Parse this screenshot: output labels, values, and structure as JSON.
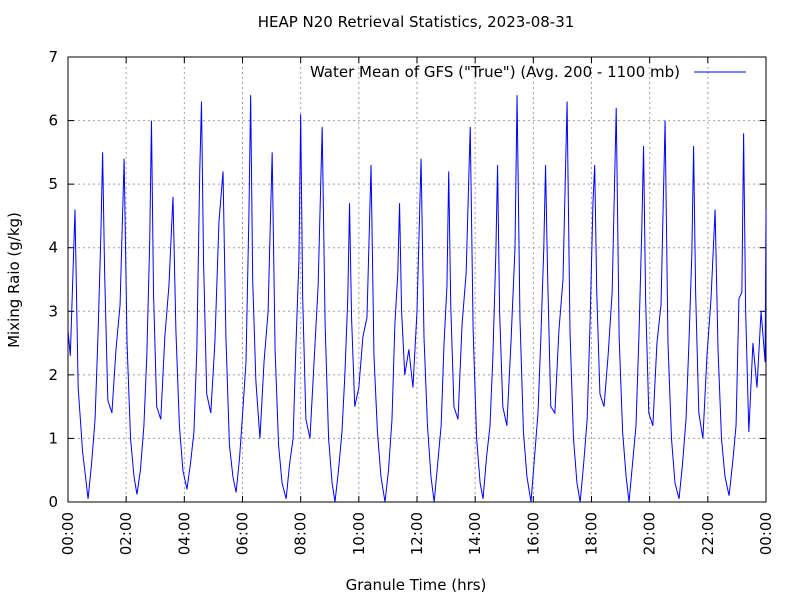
{
  "chart_data": {
    "type": "line",
    "title": "HEAP N20 Retrieval Statistics, 2023-08-31",
    "x_label": "Granule Time (hrs)",
    "y_label": "Mixing Raio (g/kg)",
    "xlim": [
      0,
      24
    ],
    "ylim": [
      0,
      7
    ],
    "xticks": [
      {
        "value": 0,
        "label": "00:00"
      },
      {
        "value": 2,
        "label": "02:00"
      },
      {
        "value": 4,
        "label": "04:00"
      },
      {
        "value": 6,
        "label": "06:00"
      },
      {
        "value": 8,
        "label": "08:00"
      },
      {
        "value": 10,
        "label": "10:00"
      },
      {
        "value": 12,
        "label": "12:00"
      },
      {
        "value": 14,
        "label": "14:00"
      },
      {
        "value": 16,
        "label": "16:00"
      },
      {
        "value": 18,
        "label": "18:00"
      },
      {
        "value": 20,
        "label": "20:00"
      },
      {
        "value": 22,
        "label": "22:00"
      },
      {
        "value": 24,
        "label": "00:00"
      }
    ],
    "yticks": [
      0,
      1,
      2,
      3,
      4,
      5,
      6,
      7
    ],
    "grid": true,
    "legend": "top-right",
    "x": [
      0,
      0.08,
      0.24,
      0.35,
      0.5,
      0.69,
      0.81,
      0.93,
      1.03,
      1.13,
      1.19,
      1.26,
      1.37,
      1.51,
      1.65,
      1.79,
      1.93,
      2.03,
      2.15,
      2.27,
      2.37,
      2.49,
      2.61,
      2.71,
      2.81,
      2.87,
      2.94,
      3.05,
      3.19,
      3.33,
      3.47,
      3.61,
      3.71,
      3.83,
      3.95,
      4.09,
      4.21,
      4.33,
      4.43,
      4.53,
      4.59,
      4.66,
      4.77,
      4.91,
      5.05,
      5.19,
      5.33,
      5.43,
      5.55,
      5.67,
      5.78,
      5.9,
      6.02,
      6.12,
      6.22,
      6.28,
      6.35,
      6.46,
      6.6,
      6.74,
      6.88,
      7.02,
      7.12,
      7.24,
      7.36,
      7.5,
      7.62,
      7.74,
      7.84,
      7.94,
      8.0,
      8.07,
      8.18,
      8.32,
      8.46,
      8.6,
      8.74,
      8.84,
      8.96,
      9.08,
      9.18,
      9.3,
      9.42,
      9.52,
      9.62,
      9.68,
      9.75,
      9.86,
      10.0,
      10.14,
      10.28,
      10.42,
      10.52,
      10.64,
      10.76,
      10.9,
      11.02,
      11.14,
      11.24,
      11.34,
      11.4,
      11.47,
      11.58,
      11.72,
      11.86,
      12.0,
      12.14,
      12.24,
      12.36,
      12.48,
      12.59,
      12.71,
      12.83,
      12.93,
      13.03,
      13.09,
      13.16,
      13.27,
      13.41,
      13.55,
      13.69,
      13.83,
      13.93,
      14.05,
      14.17,
      14.27,
      14.39,
      14.51,
      14.61,
      14.71,
      14.77,
      14.84,
      14.95,
      15.09,
      15.23,
      15.37,
      15.44,
      15.54,
      15.66,
      15.78,
      15.92,
      16.04,
      16.16,
      16.26,
      16.36,
      16.42,
      16.49,
      16.6,
      16.74,
      16.88,
      17.02,
      17.16,
      17.26,
      17.38,
      17.5,
      17.61,
      17.73,
      17.85,
      17.95,
      18.05,
      18.11,
      18.18,
      18.29,
      18.43,
      18.57,
      18.71,
      18.85,
      18.95,
      19.07,
      19.19,
      19.29,
      19.41,
      19.53,
      19.63,
      19.73,
      19.79,
      19.86,
      19.97,
      20.11,
      20.25,
      20.39,
      20.53,
      20.63,
      20.75,
      20.87,
      21.01,
      21.13,
      21.25,
      21.35,
      21.45,
      21.51,
      21.58,
      21.69,
      21.83,
      21.97,
      22.11,
      22.25,
      22.35,
      22.47,
      22.59,
      22.73,
      22.85,
      22.97,
      23.07,
      23.17,
      23.23,
      23.3,
      23.41,
      23.55,
      23.69,
      23.83,
      23.97,
      24.0
    ],
    "series": [
      {
        "name": "Water Mean of GFS (\"True\") (Avg. 200 - 1100 mb)",
        "color": "#0000ff",
        "values": [
          2.7,
          2.3,
          4.6,
          1.8,
          0.8,
          0.05,
          0.6,
          1.3,
          2.6,
          4.2,
          5.5,
          3.6,
          1.6,
          1.4,
          2.4,
          3.1,
          5.4,
          2.5,
          1.0,
          0.4,
          0.12,
          0.5,
          1.2,
          2.3,
          4.1,
          6.0,
          3.3,
          1.5,
          1.3,
          2.6,
          3.4,
          4.8,
          2.7,
          1.2,
          0.5,
          0.2,
          0.6,
          1.1,
          2.4,
          5.2,
          6.3,
          3.8,
          1.7,
          1.4,
          2.5,
          4.4,
          5.2,
          2.6,
          0.9,
          0.4,
          0.15,
          0.7,
          1.5,
          2.2,
          4.5,
          6.4,
          3.5,
          1.9,
          1.0,
          2.2,
          3.0,
          5.5,
          2.4,
          0.9,
          0.3,
          0.05,
          0.6,
          1.0,
          2.5,
          3.8,
          6.1,
          3.2,
          1.3,
          1.0,
          2.2,
          3.4,
          5.9,
          2.8,
          1.0,
          0.3,
          0,
          0.5,
          1.1,
          2.0,
          3.2,
          4.7,
          2.9,
          1.5,
          1.8,
          2.6,
          2.9,
          5.3,
          2.3,
          1.1,
          0.4,
          0,
          0.5,
          1.3,
          2.8,
          3.6,
          4.7,
          3.0,
          2.0,
          2.4,
          1.8,
          3.0,
          5.4,
          2.6,
          1.2,
          0.4,
          0,
          0.6,
          1.2,
          2.5,
          3.4,
          5.2,
          3.1,
          1.5,
          1.3,
          2.8,
          3.6,
          5.9,
          2.7,
          1.0,
          0.3,
          0.05,
          0.7,
          1.2,
          2.3,
          3.9,
          5.3,
          3.0,
          1.5,
          1.2,
          2.5,
          4.0,
          6.4,
          2.9,
          1.1,
          0.4,
          0,
          0.7,
          1.4,
          2.6,
          4.0,
          5.3,
          3.6,
          1.5,
          1.4,
          2.7,
          3.5,
          6.3,
          2.7,
          1.0,
          0.3,
          0,
          0.6,
          1.3,
          2.8,
          4.7,
          5.3,
          3.3,
          1.7,
          1.5,
          2.3,
          3.3,
          6.2,
          2.6,
          1.1,
          0.4,
          0,
          0.6,
          1.2,
          2.6,
          4.3,
          5.6,
          3.2,
          1.4,
          1.2,
          2.5,
          3.1,
          6.0,
          2.5,
          1.0,
          0.3,
          0.05,
          0.6,
          1.3,
          2.5,
          3.9,
          5.6,
          3.3,
          1.4,
          1.0,
          2.3,
          3.2,
          4.6,
          2.4,
          1.0,
          0.4,
          0.1,
          0.6,
          1.2,
          3.2,
          3.3,
          5.8,
          3.0,
          1.1,
          2.5,
          1.8,
          3.0,
          2.2,
          4.6
        ]
      }
    ]
  }
}
